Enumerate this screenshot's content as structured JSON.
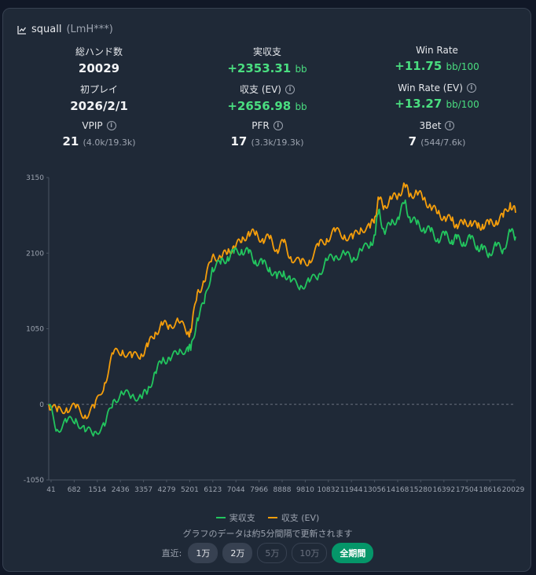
{
  "header": {
    "icon": "line-chart-icon",
    "name": "squall",
    "id": "(LmH***)"
  },
  "stats": {
    "hands": {
      "label": "総ハンド数",
      "value": "20029"
    },
    "winnings": {
      "label": "実収支",
      "value": "+2353.31",
      "unit": "bb"
    },
    "winrate": {
      "label": "Win Rate",
      "value": "+11.75",
      "unit": "bb/100"
    },
    "first_play": {
      "label": "初プレイ",
      "value": "2026/2/1"
    },
    "ev_winnings": {
      "label": "収支 (EV)",
      "value": "+2656.98",
      "unit": "bb"
    },
    "ev_winrate": {
      "label": "Win Rate (EV)",
      "value": "+13.27",
      "unit": "bb/100"
    },
    "vpip": {
      "label": "VPIP",
      "value": "21",
      "detail": "(4.0k/19.3k)"
    },
    "pfr": {
      "label": "PFR",
      "value": "17",
      "detail": "(3.3k/19.3k)"
    },
    "threebet": {
      "label": "3Bet",
      "value": "7",
      "detail": "(544/7.6k)"
    }
  },
  "chart_data": {
    "type": "line",
    "ylim": [
      -1050,
      3150
    ],
    "yticks": [
      3150,
      2100,
      1050,
      0,
      -1050
    ],
    "xlim": [
      41,
      20029
    ],
    "xticks": [
      41,
      682,
      1514,
      2436,
      3357,
      4279,
      5201,
      6123,
      7044,
      7966,
      8888,
      9810,
      10832,
      11944,
      13056,
      14168,
      15280,
      16392,
      17504,
      18616,
      20029
    ],
    "series": [
      {
        "name": "実収支",
        "color": "#22c55e",
        "x": [
          41,
          400,
          800,
          1200,
          1600,
          2000,
          2436,
          2800,
          3200,
          3600,
          4000,
          4279,
          4600,
          4900,
          5201,
          5600,
          6000,
          6123,
          6400,
          6700,
          7044,
          7400,
          7700,
          7966,
          8300,
          8600,
          8888,
          9200,
          9500,
          9810,
          10100,
          10400,
          10832,
          11200,
          11600,
          11944,
          12300,
          12700,
          13056,
          13400,
          13800,
          14000,
          14168,
          14400,
          14700,
          15000,
          15280,
          15500,
          15800,
          16100,
          16392,
          16700,
          17000,
          17300,
          17504,
          17800,
          18100,
          18400,
          18616,
          18900,
          19200,
          19500,
          19800,
          20029
        ],
        "values": [
          0,
          -350,
          -250,
          -200,
          -380,
          -380,
          -300,
          50,
          150,
          120,
          100,
          180,
          450,
          600,
          650,
          700,
          800,
          750,
          1200,
          1400,
          1900,
          1950,
          2050,
          2100,
          2150,
          2100,
          2000,
          1950,
          1900,
          1750,
          1850,
          1700,
          1650,
          1700,
          1800,
          2000,
          2050,
          2100,
          2000,
          2150,
          2200,
          2350,
          2700,
          2400,
          2500,
          2600,
          2800,
          2600,
          2500,
          2450,
          2400,
          2300,
          2350,
          2280,
          2300,
          2250,
          2300,
          2200,
          2150,
          2100,
          2200,
          2150,
          2400,
          2330
        ]
      },
      {
        "name": "収支 (EV)",
        "color": "#f59e0b",
        "x": [
          41,
          400,
          800,
          1200,
          1600,
          2000,
          2436,
          2800,
          3200,
          3600,
          4000,
          4279,
          4600,
          4900,
          5201,
          5600,
          6000,
          6123,
          6400,
          6700,
          7044,
          7400,
          7700,
          7966,
          8300,
          8600,
          8888,
          9200,
          9500,
          9810,
          10100,
          10400,
          10832,
          11200,
          11600,
          11944,
          12300,
          12700,
          13056,
          13400,
          13800,
          14000,
          14168,
          14400,
          14700,
          15000,
          15280,
          15500,
          15800,
          16100,
          16392,
          16700,
          17000,
          17300,
          17504,
          17800,
          18100,
          18400,
          18616,
          18900,
          19200,
          19500,
          19800,
          20029
        ],
        "values": [
          0,
          -100,
          -50,
          -50,
          -150,
          -50,
          300,
          700,
          750,
          650,
          700,
          800,
          1000,
          1100,
          1100,
          1150,
          1000,
          1000,
          1550,
          1700,
          2050,
          2050,
          2100,
          2200,
          2250,
          2400,
          2350,
          2300,
          2300,
          2150,
          2250,
          2050,
          1950,
          2000,
          2200,
          2300,
          2400,
          2350,
          2300,
          2450,
          2450,
          2600,
          2850,
          2750,
          2850,
          2900,
          3050,
          2900,
          2950,
          2850,
          2750,
          2650,
          2600,
          2550,
          2500,
          2500,
          2550,
          2450,
          2500,
          2500,
          2550,
          2600,
          2800,
          2660
        ]
      }
    ],
    "legend_position": "bottom"
  },
  "note": "グラフのデータは約5分間隔で更新されます",
  "range": {
    "label": "直近:",
    "options": [
      {
        "label": "1万",
        "state": "enabled"
      },
      {
        "label": "2万",
        "state": "enabled"
      },
      {
        "label": "5万",
        "state": "disabled"
      },
      {
        "label": "10万",
        "state": "disabled"
      },
      {
        "label": "全期間",
        "state": "active"
      }
    ]
  }
}
